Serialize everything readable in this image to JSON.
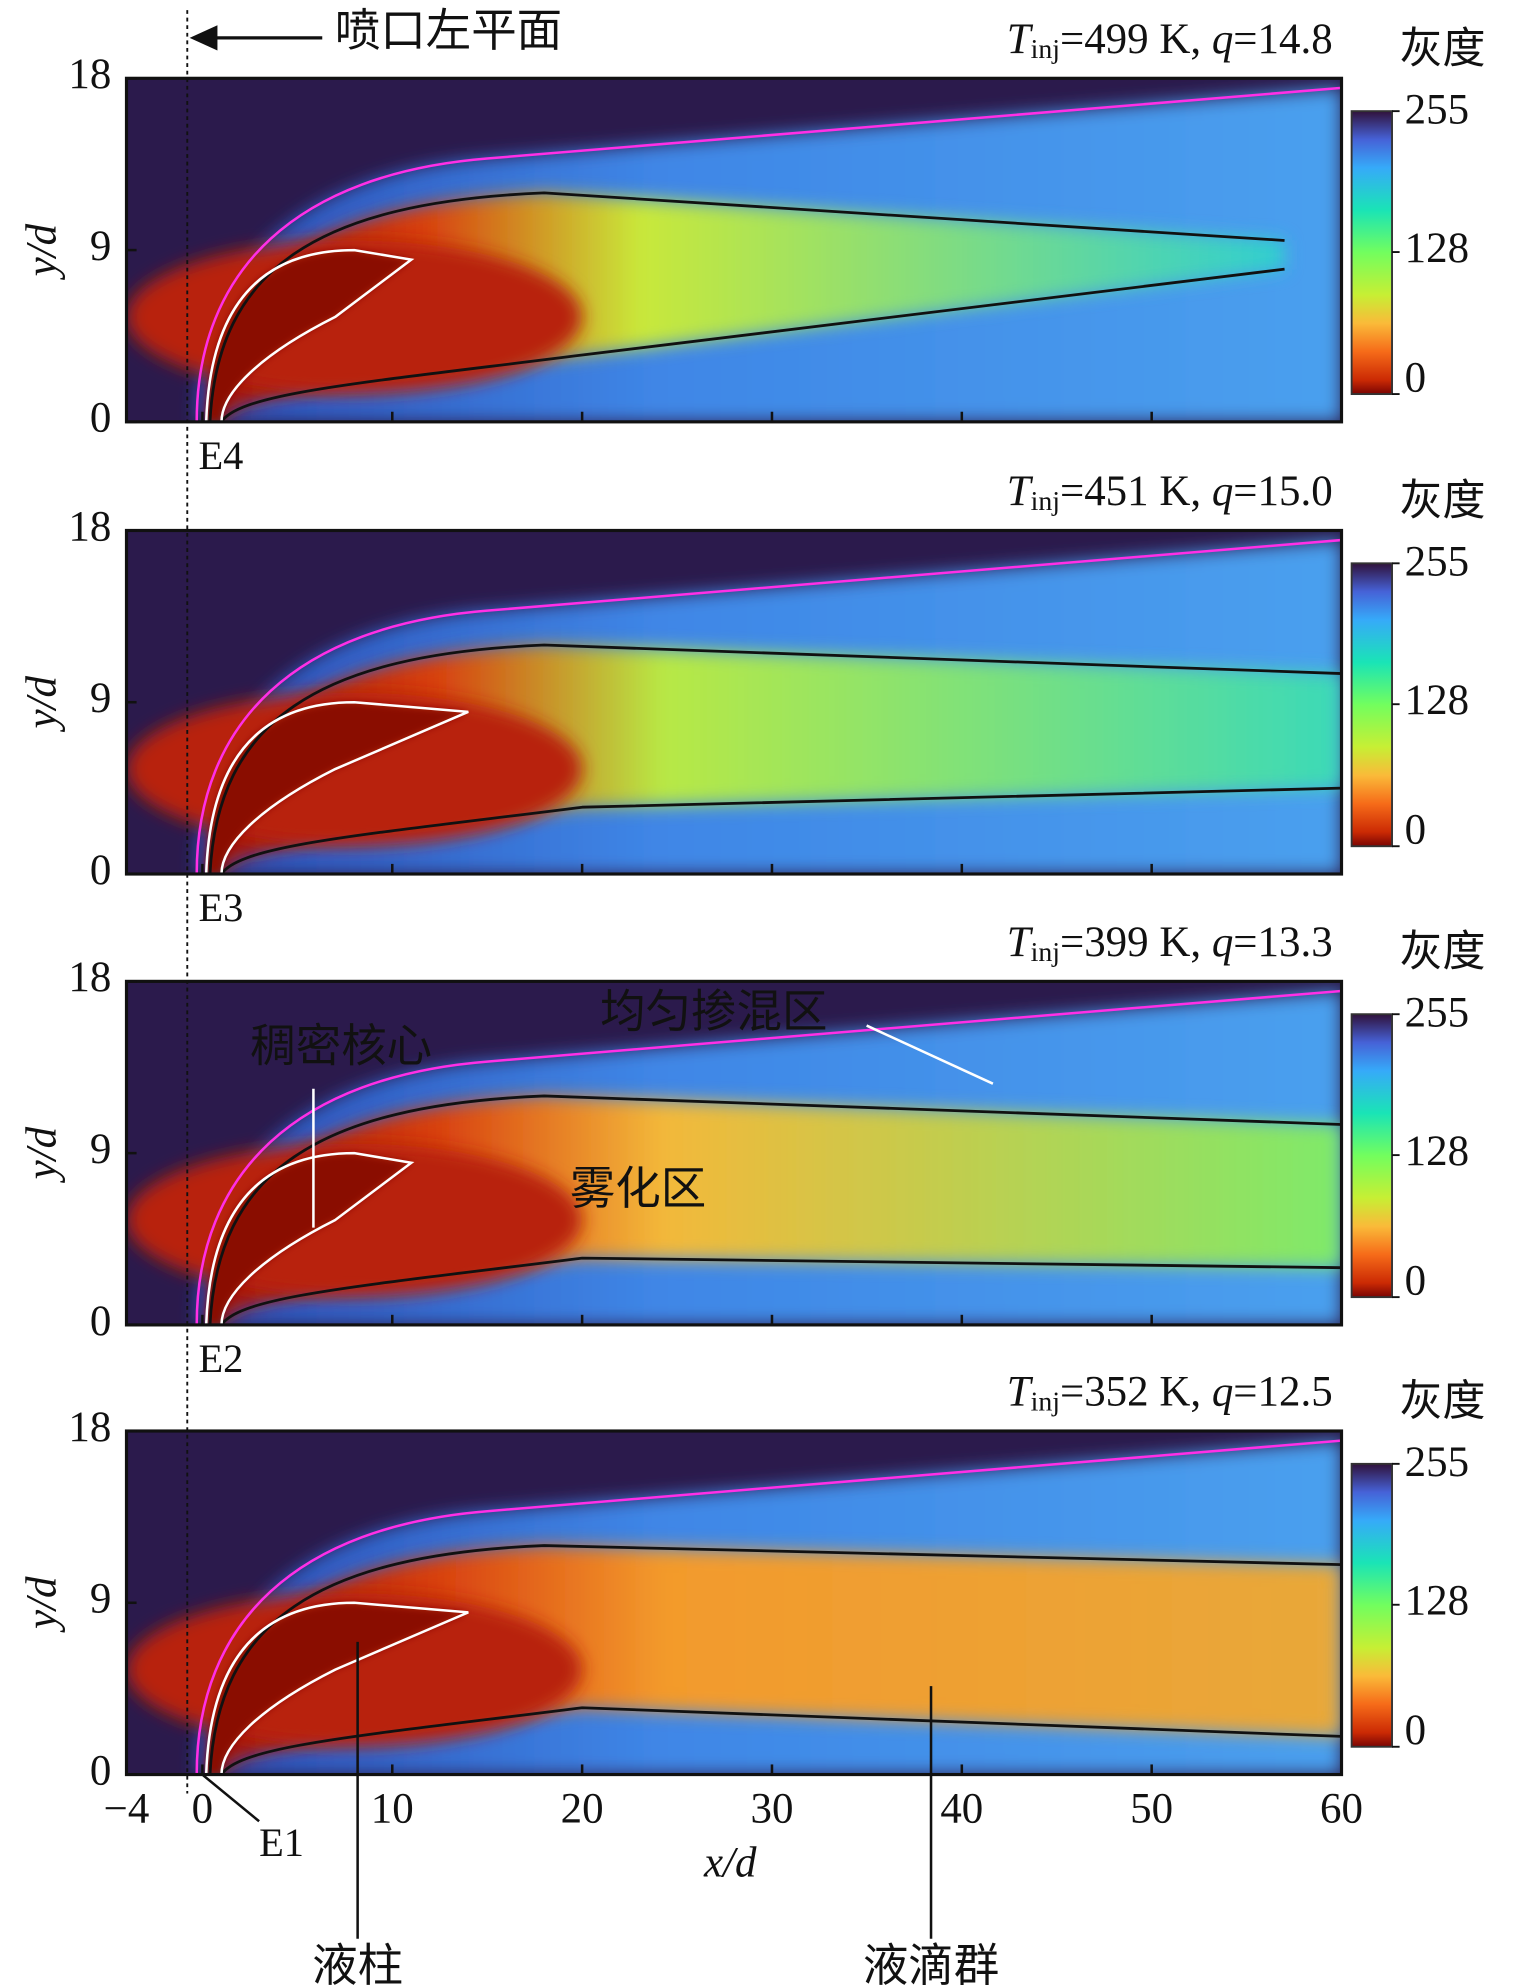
{
  "chart_data": [
    {
      "type": "heatmap",
      "title_parts": [
        "T",
        "inj",
        "=499 K, ",
        "q",
        "=14.8"
      ],
      "ylabel": "y/d",
      "ylim": [
        0,
        18
      ],
      "yticks": [
        0,
        9,
        18
      ],
      "station": "E4",
      "colorbar": {
        "label": "灰度",
        "lim": [
          0,
          255
        ],
        "ticks": [
          0,
          128,
          255
        ]
      }
    },
    {
      "type": "heatmap",
      "title_parts": [
        "T",
        "inj",
        "=451 K, ",
        "q",
        "=15.0"
      ],
      "ylabel": "y/d",
      "ylim": [
        0,
        18
      ],
      "yticks": [
        0,
        9,
        18
      ],
      "station": "E3",
      "colorbar": {
        "label": "灰度",
        "lim": [
          0,
          255
        ],
        "ticks": [
          0,
          128,
          255
        ]
      }
    },
    {
      "type": "heatmap",
      "title_parts": [
        "T",
        "inj",
        "=399 K, ",
        "q",
        "=13.3"
      ],
      "ylabel": "y/d",
      "ylim": [
        0,
        18
      ],
      "yticks": [
        0,
        9,
        18
      ],
      "station": "E2",
      "colorbar": {
        "label": "灰度",
        "lim": [
          0,
          255
        ],
        "ticks": [
          0,
          128,
          255
        ]
      },
      "annotations": [
        "稠密核心",
        "均匀掺混区",
        "雾化区"
      ]
    },
    {
      "type": "heatmap",
      "title_parts": [
        "T",
        "inj",
        "=352 K, ",
        "q",
        "=12.5"
      ],
      "ylabel": "y/d",
      "ylim": [
        0,
        18
      ],
      "yticks": [
        0,
        9,
        18
      ],
      "station": "E1",
      "colorbar": {
        "label": "灰度",
        "lim": [
          0,
          255
        ],
        "ticks": [
          0,
          128,
          255
        ]
      },
      "xlabel": "x/d",
      "xlim": [
        -4,
        60
      ],
      "xticks": [
        {
          "value": -4,
          "label": "−4"
        },
        0,
        10,
        20,
        30,
        40,
        50,
        60
      ],
      "annotations": [
        "液柱",
        "液滴群"
      ]
    }
  ],
  "nozzle_label": "喷口左平面"
}
